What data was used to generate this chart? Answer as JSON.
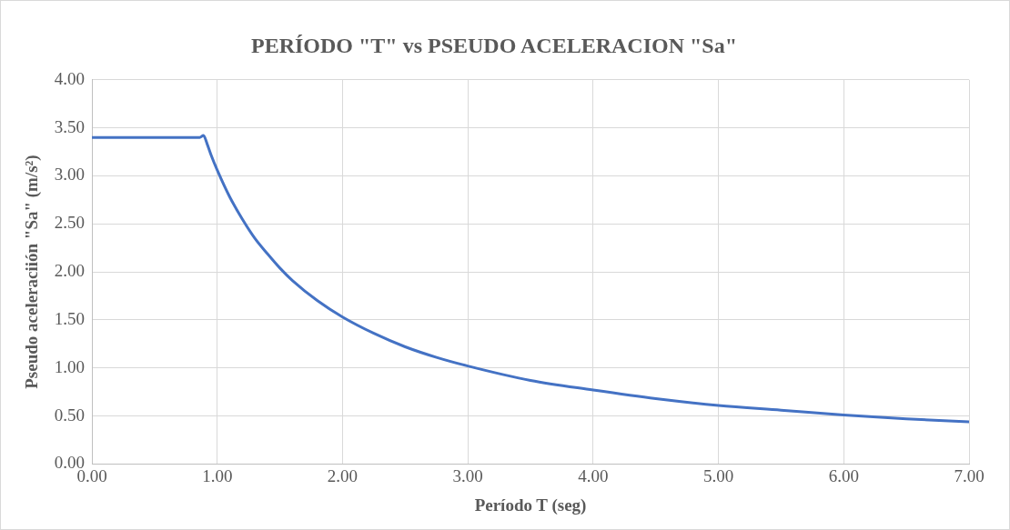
{
  "chart_data": {
    "type": "line",
    "title": "PERÍODO \"T\" vs PSEUDO ACELERACION \"Sa\"",
    "xlabel": "Período T (seg)",
    "ylabel": "Pseudo aceleraciión \"Sa\" (m/s²)",
    "x": [
      0,
      0.86,
      0.89,
      0.92,
      0.95,
      1.0,
      1.1,
      1.2,
      1.3,
      1.4,
      1.5,
      1.6,
      1.8,
      2.0,
      2.25,
      2.5,
      2.75,
      3.0,
      3.5,
      4.0,
      4.5,
      5.0,
      5.5,
      6.0,
      6.5,
      7.0
    ],
    "series": [
      {
        "color": "#4472c4",
        "values": [
          3.4,
          3.4,
          3.42,
          3.33,
          3.22,
          3.06,
          2.78,
          2.55,
          2.35,
          2.19,
          2.04,
          1.91,
          1.7,
          1.53,
          1.36,
          1.22,
          1.11,
          1.02,
          0.87,
          0.77,
          0.68,
          0.61,
          0.56,
          0.51,
          0.47,
          0.44
        ]
      }
    ],
    "xlim": [
      0,
      7
    ],
    "xticks": [
      {
        "value": 0,
        "label": "0.00"
      },
      {
        "value": 1,
        "label": "1.00"
      },
      {
        "value": 2,
        "label": "2.00"
      },
      {
        "value": 3,
        "label": "3.00"
      },
      {
        "value": 4,
        "label": "4.00"
      },
      {
        "value": 5,
        "label": "5.00"
      },
      {
        "value": 6,
        "label": "6.00"
      },
      {
        "value": 7,
        "label": "7.00"
      }
    ],
    "ylim": [
      0,
      4
    ],
    "yticks": [
      {
        "value": 0,
        "label": "0.00"
      },
      {
        "value": 0.5,
        "label": "0.50"
      },
      {
        "value": 1,
        "label": "1.00"
      },
      {
        "value": 1.5,
        "label": "1.50"
      },
      {
        "value": 2,
        "label": "2.00"
      },
      {
        "value": 2.5,
        "label": "2.50"
      },
      {
        "value": 3,
        "label": "3.00"
      },
      {
        "value": 3.5,
        "label": "3.50"
      },
      {
        "value": 4,
        "label": "4.00"
      }
    ],
    "grid": true,
    "marker": "none",
    "line_style": "solid"
  }
}
